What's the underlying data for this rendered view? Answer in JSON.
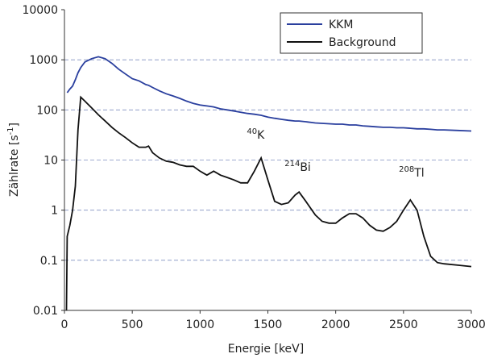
{
  "chart_data": {
    "type": "line",
    "xlabel": "Energie [keV]",
    "ylabel": {
      "main": "Zählrate [s",
      "sup": "-1",
      "close": "]"
    },
    "x": [
      15,
      20,
      40,
      60,
      80,
      100,
      120,
      150,
      200,
      250,
      300,
      350,
      400,
      450,
      500,
      550,
      600,
      620,
      650,
      700,
      750,
      800,
      850,
      900,
      950,
      1000,
      1050,
      1100,
      1150,
      1200,
      1250,
      1300,
      1350,
      1400,
      1450,
      1500,
      1550,
      1600,
      1650,
      1700,
      1730,
      1780,
      1850,
      1900,
      1950,
      2000,
      2050,
      2100,
      2150,
      2200,
      2250,
      2300,
      2350,
      2400,
      2450,
      2500,
      2550,
      2600,
      2650,
      2700,
      2750,
      2800,
      2900,
      3000
    ],
    "series": [
      {
        "name": "KKM",
        "color": "#2a3f9e",
        "values": [
          null,
          220,
          260,
          300,
          400,
          550,
          700,
          900,
          1050,
          1150,
          1050,
          850,
          650,
          520,
          420,
          380,
          320,
          310,
          280,
          240,
          210,
          190,
          170,
          150,
          135,
          125,
          120,
          115,
          105,
          100,
          95,
          90,
          85,
          82,
          78,
          72,
          68,
          65,
          62,
          60,
          60,
          58,
          55,
          54,
          53,
          52,
          52,
          50,
          50,
          48,
          47,
          46,
          45,
          45,
          44,
          44,
          43,
          42,
          42,
          41,
          40,
          40,
          39,
          38
        ]
      },
      {
        "name": "Background",
        "color": "#111111",
        "values": [
          0.01,
          0.3,
          0.5,
          1.0,
          3,
          40,
          180,
          150,
          110,
          80,
          60,
          45,
          35,
          28,
          22,
          18,
          18,
          19,
          14,
          11,
          9.5,
          9,
          8,
          7.5,
          7.5,
          6,
          5,
          6,
          5,
          4.5,
          4,
          3.5,
          3.5,
          6,
          11,
          4,
          1.5,
          1.3,
          1.4,
          2,
          2.3,
          1.5,
          0.8,
          0.6,
          0.55,
          0.55,
          0.7,
          0.85,
          0.85,
          0.7,
          0.5,
          0.4,
          0.38,
          0.45,
          0.6,
          1.0,
          1.6,
          1.0,
          0.3,
          0.12,
          0.09,
          0.085,
          0.08,
          0.075
        ]
      }
    ],
    "xlim": [
      0,
      3000
    ],
    "xticks": [
      0,
      500,
      1000,
      1500,
      2000,
      2500,
      3000
    ],
    "ylim": [
      0.01,
      10000
    ],
    "yticks": [
      0.01,
      0.1,
      1,
      10,
      100,
      1000,
      10000
    ],
    "log_y": true,
    "grid": true,
    "legend": "upper right",
    "annotations": [
      {
        "sup": "40",
        "text": "K",
        "x": 1410,
        "y": 20
      },
      {
        "sup": "214",
        "text": "Bi",
        "x": 1720,
        "y": 4.5
      },
      {
        "sup": "208",
        "text": "Tl",
        "x": 2560,
        "y": 3.5
      }
    ]
  }
}
